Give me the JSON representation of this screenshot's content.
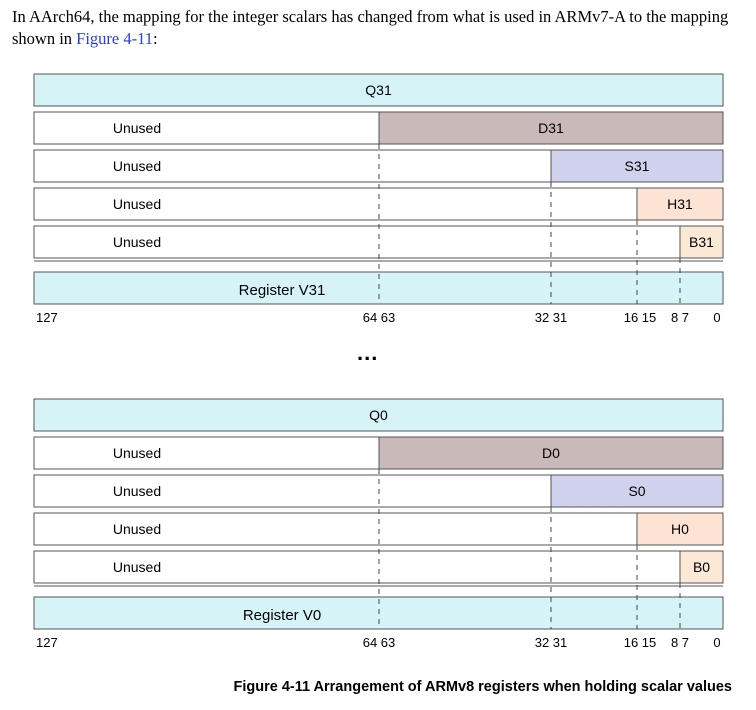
{
  "intro": {
    "text": "In AArch64, the mapping for the integer scalars has changed from what is used in ARMv7-A to the mapping shown in ",
    "link": "Figure 4-11",
    "suffix": ":"
  },
  "colors": {
    "q_fill": "#d6f4f8",
    "d_fill": "#c9b9b8",
    "s_fill": "#d0d1ec",
    "h_fill": "#fde3d3",
    "b_fill": "#fbe9d6",
    "row_fill": "#ffffff",
    "border": "#555555"
  },
  "unused_label": "Unused",
  "ellipsis": "...",
  "bit_labels": [
    "127",
    "64 63",
    "32 31",
    "16 15",
    "8 7",
    "0"
  ],
  "groups": [
    {
      "q": "Q31",
      "d": "D31",
      "s": "S31",
      "h": "H31",
      "b": "B31",
      "reg": "Register V31"
    },
    {
      "q": "Q0",
      "d": "D0",
      "s": "S0",
      "h": "H0",
      "b": "B0",
      "reg": "Register V0"
    }
  ],
  "caption": "Figure 4-11 Arrangement of ARMv8 registers when holding scalar values"
}
